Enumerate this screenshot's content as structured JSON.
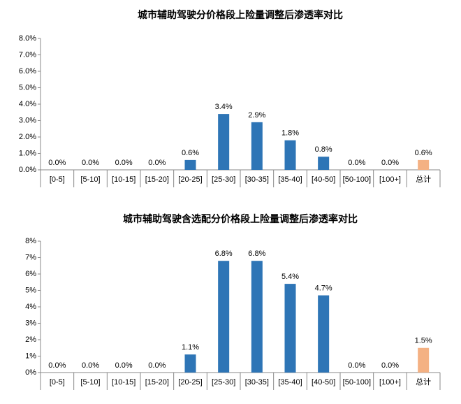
{
  "chart_data": [
    {
      "type": "bar",
      "title": "城市辅助驾驶分价格段上险量调整后渗透率对比",
      "categories": [
        "[0-5]",
        "[5-10]",
        "[10-15]",
        "[15-20]",
        "[20-25]",
        "[25-30]",
        "[30-35]",
        "[35-40]",
        "[40-50]",
        "[50-100]",
        "[100+]",
        "总计"
      ],
      "values": [
        0,
        0,
        0,
        0,
        0.6,
        3.4,
        2.9,
        1.8,
        0.8,
        0,
        0,
        0.6
      ],
      "value_labels": [
        "0.0%",
        "0.0%",
        "0.0%",
        "0.0%",
        "0.6%",
        "3.4%",
        "2.9%",
        "1.8%",
        "0.8%",
        "0.0%",
        "0.0%",
        "0.6%"
      ],
      "colors": [
        "#2e75b6",
        "#2e75b6",
        "#2e75b6",
        "#2e75b6",
        "#2e75b6",
        "#2e75b6",
        "#2e75b6",
        "#2e75b6",
        "#2e75b6",
        "#2e75b6",
        "#2e75b6",
        "#f4b183"
      ],
      "ylim": [
        0,
        8
      ],
      "yticks": [
        {
          "value": 0,
          "label": "0.0%"
        },
        {
          "value": 1,
          "label": "1.0%"
        },
        {
          "value": 2,
          "label": "2.0%"
        },
        {
          "value": 3,
          "label": "3.0%"
        },
        {
          "value": 4,
          "label": "4.0%"
        },
        {
          "value": 5,
          "label": "5.0%"
        },
        {
          "value": 6,
          "label": "6.0%"
        },
        {
          "value": 7,
          "label": "7.0%"
        },
        {
          "value": 8,
          "label": "8.0%"
        }
      ],
      "grid": false
    },
    {
      "type": "bar",
      "title": "城市辅助驾驶含选配分价格段上险量调整后渗透率对比",
      "categories": [
        "[0-5]",
        "[5-10]",
        "[10-15]",
        "[15-20]",
        "[20-25]",
        "[25-30]",
        "[30-35]",
        "[35-40]",
        "[40-50]",
        "[50-100]",
        "[100+]",
        "总计"
      ],
      "values": [
        0,
        0,
        0,
        0,
        1.1,
        6.8,
        6.8,
        5.4,
        4.7,
        0,
        0,
        1.5
      ],
      "value_labels": [
        "0.0%",
        "0.0%",
        "0.0%",
        "0.0%",
        "1.1%",
        "6.8%",
        "6.8%",
        "5.4%",
        "4.7%",
        "0.0%",
        "0.0%",
        "1.5%"
      ],
      "colors": [
        "#2e75b6",
        "#2e75b6",
        "#2e75b6",
        "#2e75b6",
        "#2e75b6",
        "#2e75b6",
        "#2e75b6",
        "#2e75b6",
        "#2e75b6",
        "#2e75b6",
        "#2e75b6",
        "#f4b183"
      ],
      "ylim": [
        0,
        8
      ],
      "yticks": [
        {
          "value": 0,
          "label": "0%"
        },
        {
          "value": 1,
          "label": "1%"
        },
        {
          "value": 2,
          "label": "2%"
        },
        {
          "value": 3,
          "label": "3%"
        },
        {
          "value": 4,
          "label": "4%"
        },
        {
          "value": 5,
          "label": "5%"
        },
        {
          "value": 6,
          "label": "6%"
        },
        {
          "value": 7,
          "label": "7%"
        },
        {
          "value": 8,
          "label": "8%"
        }
      ],
      "grid": false
    }
  ]
}
